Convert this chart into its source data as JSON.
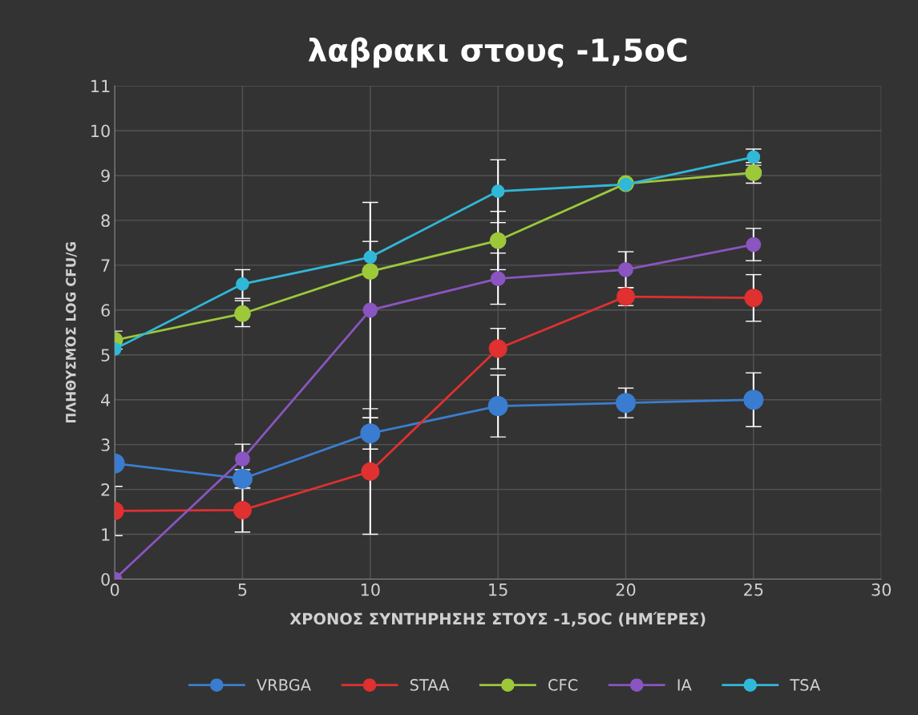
{
  "chart_data": {
    "type": "line",
    "title": "λαβρακι στους -1,5oC",
    "xlabel": "ΧΡΟΝΟΣ ΣΥΝΤΗΡΗΣΗΣ ΣΤΟΥΣ -1,5OC (ΗΜΈΡΕΣ)",
    "ylabel": "ΠΛΗΘΥΣΜΌΣ LOG CFU/G",
    "x": [
      0,
      5,
      10,
      15,
      20,
      25
    ],
    "xlim": [
      0,
      30
    ],
    "xticks": [
      0,
      5,
      10,
      15,
      20,
      25,
      30
    ],
    "ylim": [
      0,
      11
    ],
    "yticks": [
      0,
      1,
      2,
      3,
      4,
      5,
      6,
      7,
      8,
      9,
      10,
      11
    ],
    "grid": true,
    "legend": "bottom",
    "marker": "circle",
    "line_style": "solid",
    "series": [
      {
        "name": "VRBGA",
        "color": "#3a7dd0",
        "values": [
          2.58,
          2.24,
          3.25,
          3.86,
          3.93,
          4.0
        ],
        "errors": [
          null,
          0.2,
          0.35,
          0.69,
          0.33,
          0.6
        ]
      },
      {
        "name": "STAA",
        "color": "#e03030",
        "values": [
          1.52,
          1.54,
          2.4,
          5.14,
          6.3,
          6.27
        ],
        "errors": [
          0.55,
          0.49,
          1.4,
          0.45,
          0.2,
          0.52
        ]
      },
      {
        "name": "CFC",
        "color": "#9cc83a",
        "values": [
          5.33,
          5.92,
          6.86,
          7.55,
          8.82,
          9.06
        ],
        "errors": [
          0.2,
          0.29,
          null,
          0.65,
          null,
          0.23
        ]
      },
      {
        "name": "IA",
        "color": "#8a55c0",
        "values": [
          0,
          2.68,
          6.0,
          6.7,
          6.9,
          7.46
        ],
        "errors": [
          null,
          0.33,
          2.4,
          0.57,
          0.4,
          0.36
        ]
      },
      {
        "name": "TSA",
        "color": "#30b8d8",
        "values": [
          5.13,
          6.58,
          7.18,
          8.65,
          8.8,
          9.41
        ],
        "errors": [
          null,
          0.32,
          0.35,
          0.7,
          null,
          0.18
        ]
      }
    ]
  }
}
